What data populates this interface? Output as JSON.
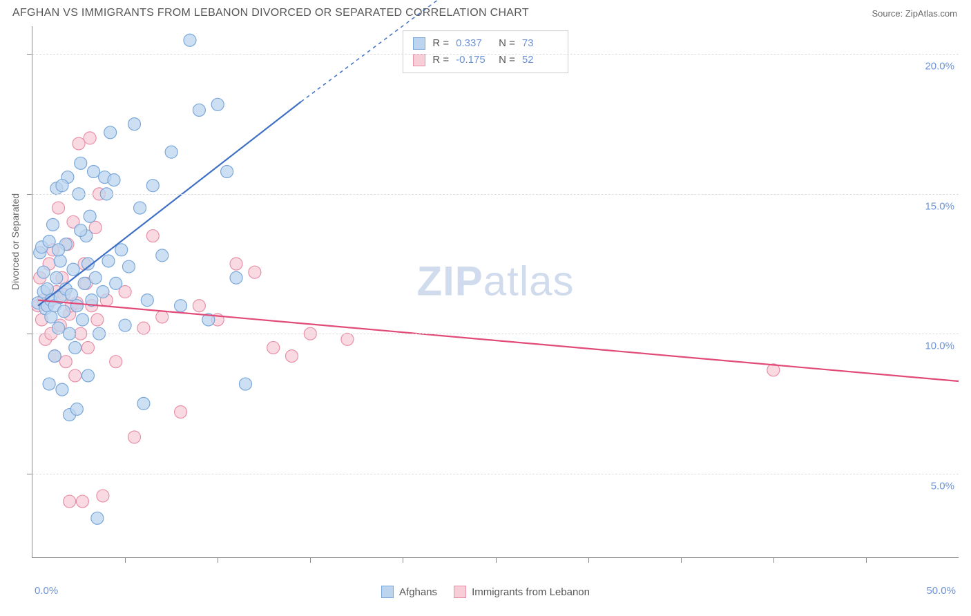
{
  "header": {
    "title": "AFGHAN VS IMMIGRANTS FROM LEBANON DIVORCED OR SEPARATED CORRELATION CHART",
    "source_prefix": "Source: ",
    "source_name": "ZipAtlas.com"
  },
  "axes": {
    "y_title": "Divorced or Separated",
    "x_min_label": "0.0%",
    "x_max_label": "50.0%",
    "y_tick_labels": [
      "5.0%",
      "10.0%",
      "15.0%",
      "20.0%"
    ],
    "xlim": [
      0,
      50
    ],
    "ylim": [
      2,
      21
    ],
    "gridline_color": "#dddddd",
    "axis_color": "#888888",
    "label_color": "#6b93d6"
  },
  "series": {
    "afghans": {
      "label": "Afghans",
      "fill": "#bcd4ee",
      "stroke": "#7aa7d9",
      "line_color": "#3d6fc4",
      "r": 0.337,
      "n": 73,
      "trend": {
        "x1": 0.3,
        "y1": 11.0,
        "x2": 14.5,
        "y2": 18.3,
        "x2_dash": 22.0,
        "y2_dash": 22.0
      },
      "points": [
        [
          0.3,
          11.1
        ],
        [
          0.4,
          12.9
        ],
        [
          0.5,
          13.1
        ],
        [
          0.6,
          11.5
        ],
        [
          0.6,
          12.2
        ],
        [
          0.7,
          10.9
        ],
        [
          0.8,
          11.0
        ],
        [
          0.8,
          11.6
        ],
        [
          0.9,
          13.3
        ],
        [
          1.0,
          10.6
        ],
        [
          1.0,
          11.2
        ],
        [
          1.1,
          13.9
        ],
        [
          1.2,
          9.2
        ],
        [
          1.2,
          11.0
        ],
        [
          1.3,
          12.0
        ],
        [
          1.3,
          15.2
        ],
        [
          1.4,
          10.2
        ],
        [
          1.5,
          11.3
        ],
        [
          1.5,
          12.6
        ],
        [
          1.6,
          8.0
        ],
        [
          1.7,
          10.8
        ],
        [
          1.8,
          11.6
        ],
        [
          1.8,
          13.2
        ],
        [
          1.9,
          15.6
        ],
        [
          2.0,
          7.1
        ],
        [
          2.0,
          10.0
        ],
        [
          2.1,
          11.4
        ],
        [
          2.2,
          12.3
        ],
        [
          2.3,
          9.5
        ],
        [
          2.4,
          11.0
        ],
        [
          2.5,
          15.0
        ],
        [
          2.6,
          16.1
        ],
        [
          2.7,
          10.5
        ],
        [
          2.8,
          11.8
        ],
        [
          2.9,
          13.5
        ],
        [
          3.0,
          8.5
        ],
        [
          3.1,
          14.2
        ],
        [
          3.2,
          11.2
        ],
        [
          3.3,
          15.8
        ],
        [
          3.4,
          12.0
        ],
        [
          3.5,
          3.4
        ],
        [
          3.6,
          10.0
        ],
        [
          3.8,
          11.5
        ],
        [
          4.0,
          15.0
        ],
        [
          4.1,
          12.6
        ],
        [
          4.2,
          17.2
        ],
        [
          4.5,
          11.8
        ],
        [
          4.8,
          13.0
        ],
        [
          5.0,
          10.3
        ],
        [
          5.2,
          12.4
        ],
        [
          5.5,
          17.5
        ],
        [
          5.8,
          14.5
        ],
        [
          6.0,
          7.5
        ],
        [
          6.2,
          11.2
        ],
        [
          6.5,
          15.3
        ],
        [
          7.0,
          12.8
        ],
        [
          7.5,
          16.5
        ],
        [
          8.0,
          11.0
        ],
        [
          8.5,
          20.5
        ],
        [
          9.0,
          18.0
        ],
        [
          9.5,
          10.5
        ],
        [
          10.0,
          18.2
        ],
        [
          10.5,
          15.8
        ],
        [
          11.0,
          12.0
        ],
        [
          11.5,
          8.2
        ],
        [
          3.9,
          15.6
        ],
        [
          4.4,
          15.5
        ],
        [
          2.6,
          13.7
        ],
        [
          1.6,
          15.3
        ],
        [
          3.0,
          12.5
        ],
        [
          2.4,
          7.3
        ],
        [
          0.9,
          8.2
        ],
        [
          1.4,
          13.0
        ]
      ]
    },
    "lebanon": {
      "label": "Immigrants from Lebanon",
      "fill": "#f7cdd8",
      "stroke": "#e890a8",
      "line_color": "#e24a78",
      "r": -0.175,
      "n": 52,
      "trend": {
        "x1": 0.3,
        "y1": 11.2,
        "x2": 50.0,
        "y2": 8.3
      },
      "points": [
        [
          0.3,
          11.0
        ],
        [
          0.4,
          12.0
        ],
        [
          0.5,
          10.5
        ],
        [
          0.6,
          11.2
        ],
        [
          0.7,
          9.8
        ],
        [
          0.8,
          11.0
        ],
        [
          0.9,
          12.5
        ],
        [
          1.0,
          10.0
        ],
        [
          1.1,
          13.0
        ],
        [
          1.2,
          9.2
        ],
        [
          1.3,
          11.5
        ],
        [
          1.4,
          14.5
        ],
        [
          1.5,
          10.3
        ],
        [
          1.6,
          12.0
        ],
        [
          1.7,
          11.4
        ],
        [
          1.8,
          9.0
        ],
        [
          1.9,
          13.2
        ],
        [
          2.0,
          10.7
        ],
        [
          2.1,
          11.0
        ],
        [
          2.2,
          14.0
        ],
        [
          2.3,
          8.5
        ],
        [
          2.4,
          11.1
        ],
        [
          2.5,
          16.8
        ],
        [
          2.6,
          10.0
        ],
        [
          2.7,
          4.0
        ],
        [
          2.8,
          12.5
        ],
        [
          2.9,
          11.8
        ],
        [
          3.0,
          9.5
        ],
        [
          3.2,
          11.0
        ],
        [
          3.4,
          13.8
        ],
        [
          3.5,
          10.5
        ],
        [
          3.6,
          15.0
        ],
        [
          3.8,
          4.2
        ],
        [
          4.0,
          11.2
        ],
        [
          4.5,
          9.0
        ],
        [
          5.0,
          11.5
        ],
        [
          5.5,
          6.3
        ],
        [
          6.0,
          10.2
        ],
        [
          6.5,
          13.5
        ],
        [
          7.0,
          10.6
        ],
        [
          8.0,
          7.2
        ],
        [
          9.0,
          11.0
        ],
        [
          10.0,
          10.5
        ],
        [
          11.0,
          12.5
        ],
        [
          12.0,
          12.2
        ],
        [
          13.0,
          9.5
        ],
        [
          14.0,
          9.2
        ],
        [
          15.0,
          10.0
        ],
        [
          17.0,
          9.8
        ],
        [
          3.1,
          17.0
        ],
        [
          2.0,
          4.0
        ],
        [
          40.0,
          8.7
        ]
      ]
    }
  },
  "stats_box": {
    "r_label": "R  =",
    "n_label": "N  =",
    "r1": "0.337",
    "n1": "73",
    "r2": "-0.175",
    "n2": "52"
  },
  "watermark": {
    "bold": "ZIP",
    "rest": "atlas"
  },
  "style": {
    "marker_radius": 9,
    "marker_opacity": 0.75,
    "trend_width": 2.2,
    "background": "#ffffff"
  }
}
